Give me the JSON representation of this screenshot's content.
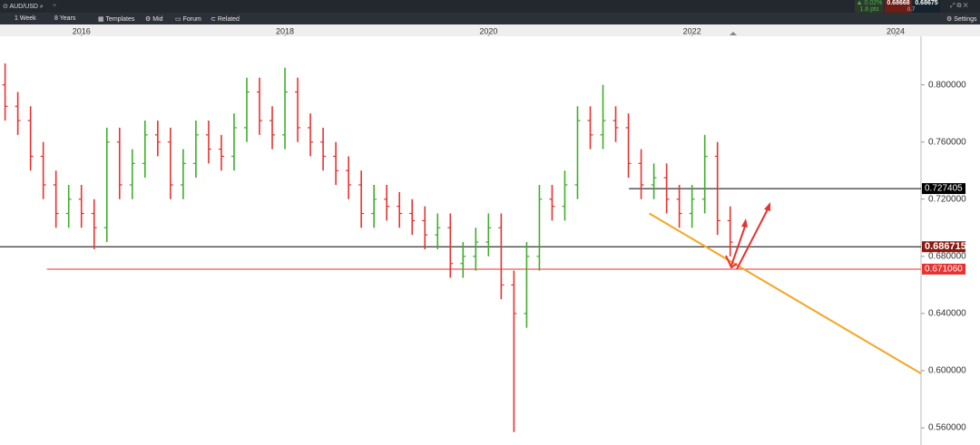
{
  "ui": {
    "symbol": "AUD/USD",
    "interval": "1 Week",
    "range": "8 Years",
    "templates": "Templates",
    "mid": "Mid",
    "forum": "Forum",
    "related": "Related",
    "settings": "Settings",
    "change_pct": "▲ 0.02%",
    "change_pts": "1.6 pts",
    "bid": "0.68668",
    "ask": "0.68675",
    "spread": "0.7"
  },
  "chart_data": {
    "type": "ohlc",
    "x": [
      2015.25,
      2015.375,
      2015.5,
      2015.625,
      2015.75,
      2015.875,
      2016.0,
      2016.125,
      2016.25,
      2016.375,
      2016.5,
      2016.625,
      2016.75,
      2016.875,
      2017.0,
      2017.125,
      2017.25,
      2017.375,
      2017.5,
      2017.625,
      2017.75,
      2017.875,
      2018.0,
      2018.125,
      2018.25,
      2018.375,
      2018.5,
      2018.625,
      2018.75,
      2018.875,
      2019.0,
      2019.125,
      2019.25,
      2019.375,
      2019.5,
      2019.625,
      2019.75,
      2019.875,
      2020.0,
      2020.125,
      2020.25,
      2020.375,
      2020.5,
      2020.625,
      2020.75,
      2020.875,
      2021.0,
      2021.125,
      2021.25,
      2021.375,
      2021.5,
      2021.625,
      2021.75,
      2021.875,
      2022.0,
      2022.125,
      2022.25,
      2022.375
    ],
    "open": [
      0.8,
      0.785,
      0.775,
      0.75,
      0.73,
      0.71,
      0.72,
      0.71,
      0.7,
      0.76,
      0.73,
      0.745,
      0.765,
      0.76,
      0.73,
      0.745,
      0.765,
      0.755,
      0.75,
      0.77,
      0.795,
      0.775,
      0.765,
      0.795,
      0.77,
      0.76,
      0.75,
      0.74,
      0.73,
      0.71,
      0.72,
      0.715,
      0.71,
      0.705,
      0.695,
      0.7,
      0.675,
      0.68,
      0.69,
      0.7,
      0.66,
      0.64,
      0.68,
      0.72,
      0.715,
      0.73,
      0.775,
      0.765,
      0.775,
      0.77,
      0.745,
      0.73,
      0.735,
      0.72,
      0.71,
      0.72,
      0.75,
      0.705
    ],
    "high": [
      0.815,
      0.795,
      0.785,
      0.76,
      0.74,
      0.73,
      0.73,
      0.72,
      0.77,
      0.77,
      0.755,
      0.775,
      0.775,
      0.77,
      0.755,
      0.775,
      0.775,
      0.765,
      0.78,
      0.805,
      0.805,
      0.785,
      0.812,
      0.805,
      0.78,
      0.77,
      0.76,
      0.75,
      0.74,
      0.73,
      0.73,
      0.725,
      0.72,
      0.715,
      0.71,
      0.71,
      0.69,
      0.7,
      0.71,
      0.71,
      0.67,
      0.69,
      0.73,
      0.73,
      0.74,
      0.785,
      0.785,
      0.8,
      0.785,
      0.78,
      0.755,
      0.745,
      0.745,
      0.73,
      0.73,
      0.765,
      0.76,
      0.715
    ],
    "low": [
      0.775,
      0.765,
      0.74,
      0.72,
      0.7,
      0.7,
      0.7,
      0.685,
      0.69,
      0.72,
      0.72,
      0.735,
      0.75,
      0.72,
      0.72,
      0.735,
      0.745,
      0.74,
      0.74,
      0.76,
      0.765,
      0.755,
      0.755,
      0.76,
      0.75,
      0.74,
      0.73,
      0.72,
      0.7,
      0.7,
      0.705,
      0.7,
      0.695,
      0.685,
      0.685,
      0.665,
      0.665,
      0.67,
      0.68,
      0.65,
      0.557,
      0.63,
      0.67,
      0.705,
      0.705,
      0.72,
      0.755,
      0.755,
      0.76,
      0.735,
      0.72,
      0.72,
      0.71,
      0.7,
      0.7,
      0.71,
      0.695,
      0.68
    ],
    "close": [
      0.785,
      0.775,
      0.75,
      0.73,
      0.71,
      0.72,
      0.71,
      0.7,
      0.76,
      0.73,
      0.745,
      0.765,
      0.76,
      0.73,
      0.745,
      0.765,
      0.755,
      0.75,
      0.77,
      0.795,
      0.775,
      0.765,
      0.795,
      0.77,
      0.76,
      0.75,
      0.74,
      0.73,
      0.71,
      0.72,
      0.715,
      0.71,
      0.705,
      0.695,
      0.7,
      0.675,
      0.68,
      0.69,
      0.7,
      0.66,
      0.64,
      0.68,
      0.72,
      0.715,
      0.73,
      0.775,
      0.765,
      0.775,
      0.77,
      0.745,
      0.73,
      0.735,
      0.72,
      0.71,
      0.72,
      0.75,
      0.705,
      0.69
    ],
    "up_color": "#3fae2a",
    "down_color": "#e8322f",
    "xlim": [
      2015.2,
      2024.25
    ],
    "xticks": [
      2016,
      2018,
      2020,
      2022,
      2024
    ],
    "ylim": [
      0.548,
      0.834
    ],
    "yticks": [
      {
        "value": 0.56,
        "label": "0.560000"
      },
      {
        "value": 0.6,
        "label": "0.600000"
      },
      {
        "value": 0.64,
        "label": "0.640000"
      },
      {
        "value": 0.68,
        "label": "0.680000"
      },
      {
        "value": 0.72,
        "label": "0.720000"
      },
      {
        "value": 0.76,
        "label": "0.760000"
      },
      {
        "value": 0.8,
        "label": "0.800000"
      }
    ],
    "hlines": [
      {
        "value": 0.727405,
        "label": "0.727405",
        "color": "#000000",
        "start": 2021.38
      },
      {
        "value": 0.686715,
        "label": "0.686715",
        "color": "#000000",
        "box": "#8b1a10"
      },
      {
        "value": 0.67106,
        "label": "0.671060",
        "color": "#e8322f",
        "start": 2015.66
      }
    ],
    "trendline": {
      "x": [
        2021.58,
        2024.25
      ],
      "y": [
        0.71,
        0.598
      ],
      "color": "#f5a623"
    }
  }
}
